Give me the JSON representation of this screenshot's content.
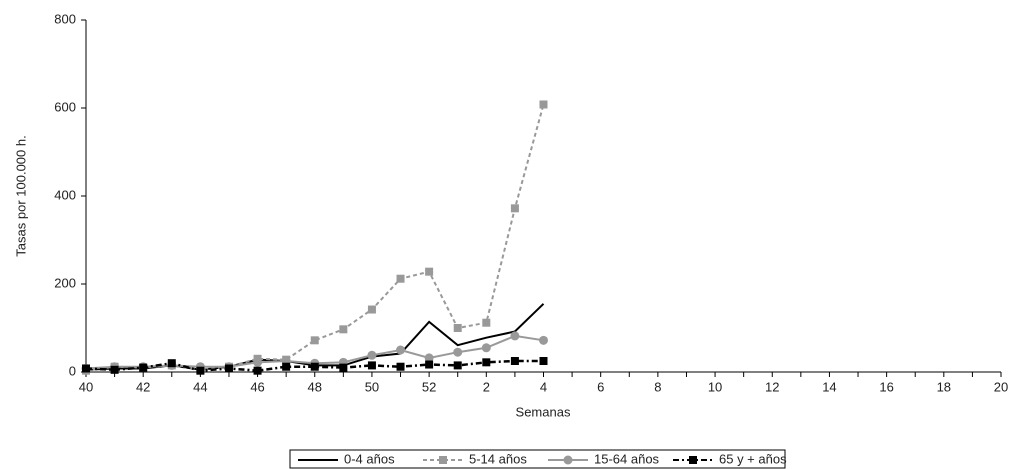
{
  "chart_data": {
    "type": "line",
    "x_label": "Semanas",
    "y_label": "Tasas por 100.000 h.",
    "categories": [
      "40",
      null,
      "42",
      null,
      "44",
      null,
      "46",
      null,
      "48",
      null,
      "50",
      null,
      "52",
      null,
      "2",
      null,
      "4",
      null,
      "6",
      null,
      "8",
      null,
      "10",
      null,
      "12",
      null,
      "14",
      null,
      "16",
      null,
      "18",
      null,
      "20"
    ],
    "ylim": [
      0,
      800
    ],
    "yticks": [
      0,
      200,
      400,
      600,
      800
    ],
    "series": [
      {
        "name": "0-4 años",
        "color": "#000000",
        "line_style": "solid",
        "marker": "none",
        "values": [
          5,
          8,
          8,
          15,
          5,
          12,
          28,
          25,
          15,
          15,
          35,
          42,
          114,
          61,
          78,
          92,
          155,
          null,
          null,
          null,
          null,
          null,
          null,
          null,
          null,
          null,
          null,
          null,
          null,
          null,
          null,
          null,
          null
        ]
      },
      {
        "name": "5-14 años",
        "color": "#999999",
        "line_style": "dashed",
        "marker": "square",
        "values": [
          3,
          12,
          10,
          15,
          5,
          12,
          30,
          28,
          72,
          97,
          142,
          212,
          228,
          100,
          112,
          372,
          608,
          null,
          null,
          null,
          null,
          null,
          null,
          null,
          null,
          null,
          null,
          null,
          null,
          null,
          null,
          null,
          null
        ]
      },
      {
        "name": "15-64 años",
        "color": "#999999",
        "line_style": "solid",
        "marker": "circle",
        "values": [
          8,
          12,
          12,
          15,
          12,
          12,
          22,
          25,
          20,
          22,
          38,
          50,
          32,
          45,
          55,
          82,
          72,
          null,
          null,
          null,
          null,
          null,
          null,
          null,
          null,
          null,
          null,
          null,
          null,
          null,
          null,
          null,
          null
        ]
      },
      {
        "name": "65 y + años",
        "color": "#000000",
        "line_style": "dashdot",
        "marker": "square",
        "values": [
          8,
          5,
          10,
          20,
          3,
          8,
          3,
          12,
          12,
          10,
          15,
          12,
          17,
          15,
          22,
          25,
          25,
          null,
          null,
          null,
          null,
          null,
          null,
          null,
          null,
          null,
          null,
          null,
          null,
          null,
          null,
          null,
          null
        ]
      }
    ]
  }
}
